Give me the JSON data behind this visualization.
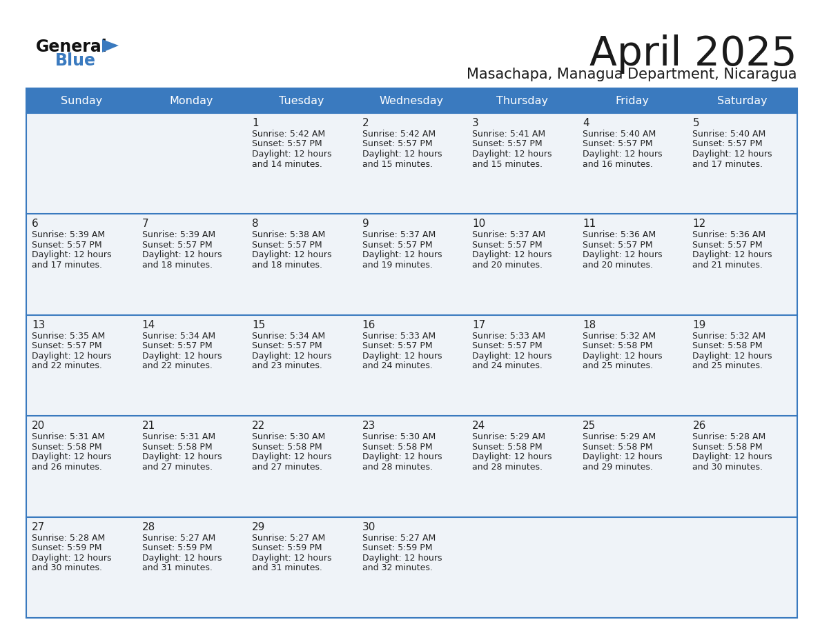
{
  "title": "April 2025",
  "subtitle": "Masachapa, Managua Department, Nicaragua",
  "header_bg_color": "#3a7abf",
  "header_text_color": "#ffffff",
  "cell_bg_color": "#eff3f8",
  "separator_color": "#3a7abf",
  "text_color": "#222222",
  "days_of_week": [
    "Sunday",
    "Monday",
    "Tuesday",
    "Wednesday",
    "Thursday",
    "Friday",
    "Saturday"
  ],
  "calendar_data": [
    [
      {
        "day": "",
        "sunrise": "",
        "sunset": "",
        "daylight": ""
      },
      {
        "day": "",
        "sunrise": "",
        "sunset": "",
        "daylight": ""
      },
      {
        "day": "1",
        "sunrise": "Sunrise: 5:42 AM",
        "sunset": "Sunset: 5:57 PM",
        "daylight": "Daylight: 12 hours\nand 14 minutes."
      },
      {
        "day": "2",
        "sunrise": "Sunrise: 5:42 AM",
        "sunset": "Sunset: 5:57 PM",
        "daylight": "Daylight: 12 hours\nand 15 minutes."
      },
      {
        "day": "3",
        "sunrise": "Sunrise: 5:41 AM",
        "sunset": "Sunset: 5:57 PM",
        "daylight": "Daylight: 12 hours\nand 15 minutes."
      },
      {
        "day": "4",
        "sunrise": "Sunrise: 5:40 AM",
        "sunset": "Sunset: 5:57 PM",
        "daylight": "Daylight: 12 hours\nand 16 minutes."
      },
      {
        "day": "5",
        "sunrise": "Sunrise: 5:40 AM",
        "sunset": "Sunset: 5:57 PM",
        "daylight": "Daylight: 12 hours\nand 17 minutes."
      }
    ],
    [
      {
        "day": "6",
        "sunrise": "Sunrise: 5:39 AM",
        "sunset": "Sunset: 5:57 PM",
        "daylight": "Daylight: 12 hours\nand 17 minutes."
      },
      {
        "day": "7",
        "sunrise": "Sunrise: 5:39 AM",
        "sunset": "Sunset: 5:57 PM",
        "daylight": "Daylight: 12 hours\nand 18 minutes."
      },
      {
        "day": "8",
        "sunrise": "Sunrise: 5:38 AM",
        "sunset": "Sunset: 5:57 PM",
        "daylight": "Daylight: 12 hours\nand 18 minutes."
      },
      {
        "day": "9",
        "sunrise": "Sunrise: 5:37 AM",
        "sunset": "Sunset: 5:57 PM",
        "daylight": "Daylight: 12 hours\nand 19 minutes."
      },
      {
        "day": "10",
        "sunrise": "Sunrise: 5:37 AM",
        "sunset": "Sunset: 5:57 PM",
        "daylight": "Daylight: 12 hours\nand 20 minutes."
      },
      {
        "day": "11",
        "sunrise": "Sunrise: 5:36 AM",
        "sunset": "Sunset: 5:57 PM",
        "daylight": "Daylight: 12 hours\nand 20 minutes."
      },
      {
        "day": "12",
        "sunrise": "Sunrise: 5:36 AM",
        "sunset": "Sunset: 5:57 PM",
        "daylight": "Daylight: 12 hours\nand 21 minutes."
      }
    ],
    [
      {
        "day": "13",
        "sunrise": "Sunrise: 5:35 AM",
        "sunset": "Sunset: 5:57 PM",
        "daylight": "Daylight: 12 hours\nand 22 minutes."
      },
      {
        "day": "14",
        "sunrise": "Sunrise: 5:34 AM",
        "sunset": "Sunset: 5:57 PM",
        "daylight": "Daylight: 12 hours\nand 22 minutes."
      },
      {
        "day": "15",
        "sunrise": "Sunrise: 5:34 AM",
        "sunset": "Sunset: 5:57 PM",
        "daylight": "Daylight: 12 hours\nand 23 minutes."
      },
      {
        "day": "16",
        "sunrise": "Sunrise: 5:33 AM",
        "sunset": "Sunset: 5:57 PM",
        "daylight": "Daylight: 12 hours\nand 24 minutes."
      },
      {
        "day": "17",
        "sunrise": "Sunrise: 5:33 AM",
        "sunset": "Sunset: 5:57 PM",
        "daylight": "Daylight: 12 hours\nand 24 minutes."
      },
      {
        "day": "18",
        "sunrise": "Sunrise: 5:32 AM",
        "sunset": "Sunset: 5:58 PM",
        "daylight": "Daylight: 12 hours\nand 25 minutes."
      },
      {
        "day": "19",
        "sunrise": "Sunrise: 5:32 AM",
        "sunset": "Sunset: 5:58 PM",
        "daylight": "Daylight: 12 hours\nand 25 minutes."
      }
    ],
    [
      {
        "day": "20",
        "sunrise": "Sunrise: 5:31 AM",
        "sunset": "Sunset: 5:58 PM",
        "daylight": "Daylight: 12 hours\nand 26 minutes."
      },
      {
        "day": "21",
        "sunrise": "Sunrise: 5:31 AM",
        "sunset": "Sunset: 5:58 PM",
        "daylight": "Daylight: 12 hours\nand 27 minutes."
      },
      {
        "day": "22",
        "sunrise": "Sunrise: 5:30 AM",
        "sunset": "Sunset: 5:58 PM",
        "daylight": "Daylight: 12 hours\nand 27 minutes."
      },
      {
        "day": "23",
        "sunrise": "Sunrise: 5:30 AM",
        "sunset": "Sunset: 5:58 PM",
        "daylight": "Daylight: 12 hours\nand 28 minutes."
      },
      {
        "day": "24",
        "sunrise": "Sunrise: 5:29 AM",
        "sunset": "Sunset: 5:58 PM",
        "daylight": "Daylight: 12 hours\nand 28 minutes."
      },
      {
        "day": "25",
        "sunrise": "Sunrise: 5:29 AM",
        "sunset": "Sunset: 5:58 PM",
        "daylight": "Daylight: 12 hours\nand 29 minutes."
      },
      {
        "day": "26",
        "sunrise": "Sunrise: 5:28 AM",
        "sunset": "Sunset: 5:58 PM",
        "daylight": "Daylight: 12 hours\nand 30 minutes."
      }
    ],
    [
      {
        "day": "27",
        "sunrise": "Sunrise: 5:28 AM",
        "sunset": "Sunset: 5:59 PM",
        "daylight": "Daylight: 12 hours\nand 30 minutes."
      },
      {
        "day": "28",
        "sunrise": "Sunrise: 5:27 AM",
        "sunset": "Sunset: 5:59 PM",
        "daylight": "Daylight: 12 hours\nand 31 minutes."
      },
      {
        "day": "29",
        "sunrise": "Sunrise: 5:27 AM",
        "sunset": "Sunset: 5:59 PM",
        "daylight": "Daylight: 12 hours\nand 31 minutes."
      },
      {
        "day": "30",
        "sunrise": "Sunrise: 5:27 AM",
        "sunset": "Sunset: 5:59 PM",
        "daylight": "Daylight: 12 hours\nand 32 minutes."
      },
      {
        "day": "",
        "sunrise": "",
        "sunset": "",
        "daylight": ""
      },
      {
        "day": "",
        "sunrise": "",
        "sunset": "",
        "daylight": ""
      },
      {
        "day": "",
        "sunrise": "",
        "sunset": "",
        "daylight": ""
      }
    ]
  ]
}
